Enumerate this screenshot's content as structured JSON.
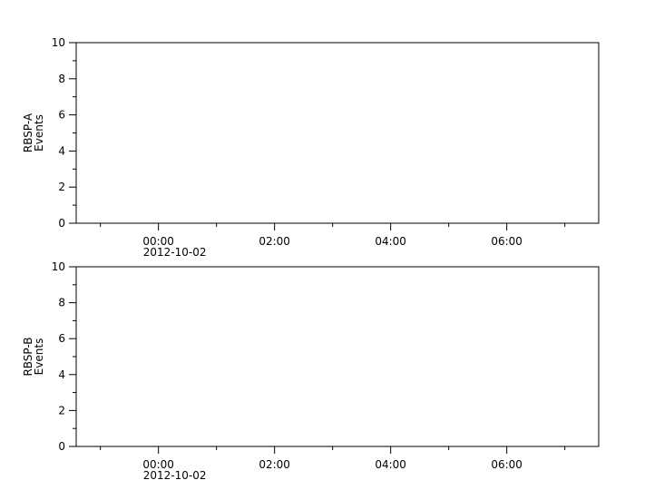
{
  "chart_data": [
    {
      "type": "line",
      "ylabel": [
        "RBSP-A",
        "Events"
      ],
      "ylim": [
        0,
        10
      ],
      "yticks": [
        "0",
        "2",
        "4",
        "6",
        "8",
        "10"
      ],
      "xlim": [
        "2012-10-01T22:35",
        "2012-10-02T07:35"
      ],
      "xticks": [
        "00:00",
        "02:00",
        "04:00",
        "06:00"
      ],
      "xdate_label": "2012-10-02",
      "series": [],
      "grid": false
    },
    {
      "type": "line",
      "ylabel": [
        "RBSP-B",
        "Events"
      ],
      "ylim": [
        0,
        10
      ],
      "yticks": [
        "0",
        "2",
        "4",
        "6",
        "8",
        "10"
      ],
      "xlim": [
        "2012-10-01T22:35",
        "2012-10-02T07:35"
      ],
      "xticks": [
        "00:00",
        "02:00",
        "04:00",
        "06:00"
      ],
      "xdate_label": "2012-10-02",
      "series": [],
      "grid": false
    }
  ]
}
